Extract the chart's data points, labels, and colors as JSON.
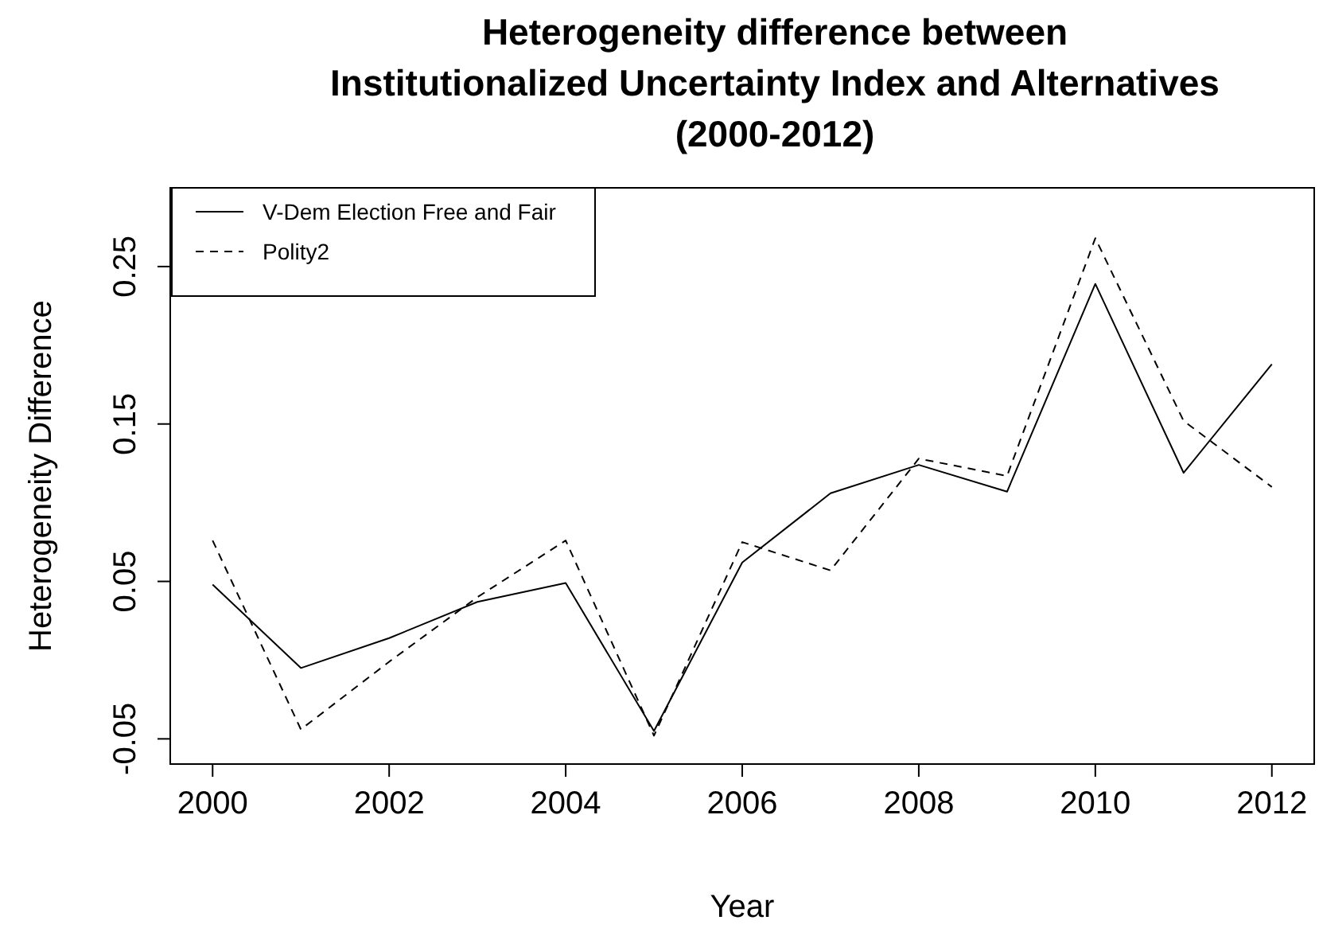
{
  "chart_data": {
    "type": "line",
    "title": "Heterogeneity difference between\nInstitutionalized Uncertainty Index and Alternatives\n(2000-2012)",
    "xlabel": "Year",
    "ylabel": "Heterogeneity Difference",
    "x": [
      2000,
      2001,
      2002,
      2003,
      2004,
      2005,
      2006,
      2007,
      2008,
      2009,
      2010,
      2011,
      2012
    ],
    "series": [
      {
        "name": "V-Dem Election Free and Fair",
        "color": "#000000",
        "line_style": "solid",
        "values": [
          0.048,
          -0.005,
          0.014,
          0.037,
          0.049,
          -0.045,
          0.062,
          0.106,
          0.124,
          0.107,
          0.239,
          0.119,
          0.188
        ]
      },
      {
        "name": "Polity2",
        "color": "#000000",
        "line_style": "dashed",
        "values": [
          0.076,
          -0.044,
          -0.001,
          0.04,
          0.076,
          -0.048,
          0.075,
          0.057,
          0.128,
          0.117,
          0.268,
          0.152,
          0.11
        ]
      }
    ],
    "xlim": [
      1999.52,
      2012.48
    ],
    "ylim": [
      -0.066,
      0.3
    ],
    "xticks": [
      2000,
      2002,
      2004,
      2006,
      2008,
      2010,
      2012
    ],
    "yticks": [
      -0.05,
      0.05,
      0.15,
      0.25
    ],
    "legend": "top left",
    "grid": false
  }
}
